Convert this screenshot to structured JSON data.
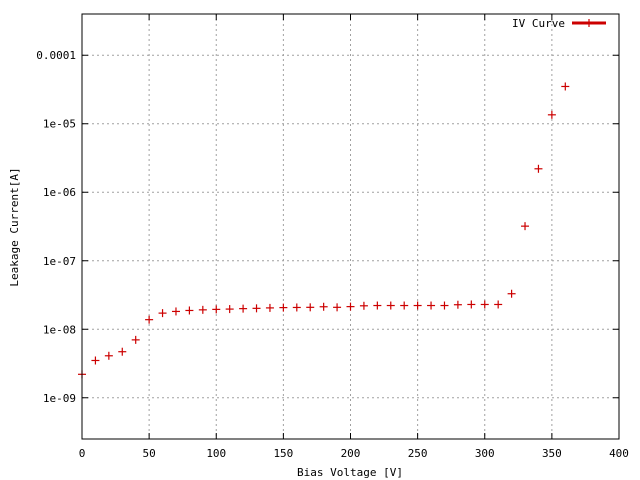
{
  "chart_data": {
    "type": "scatter",
    "title": "",
    "xlabel": "Bias Voltage [V]",
    "ylabel": "Leakage Current[A]",
    "xlim": [
      0,
      400
    ],
    "ylim": [
      2.5e-10,
      0.0004
    ],
    "yscale": "log",
    "grid": true,
    "legend_position": "top-right",
    "xticks": [
      {
        "v": 0,
        "label": "0"
      },
      {
        "v": 50,
        "label": "50"
      },
      {
        "v": 100,
        "label": "100"
      },
      {
        "v": 150,
        "label": "150"
      },
      {
        "v": 200,
        "label": "200"
      },
      {
        "v": 250,
        "label": "250"
      },
      {
        "v": 300,
        "label": "300"
      },
      {
        "v": 350,
        "label": "350"
      },
      {
        "v": 400,
        "label": "400"
      }
    ],
    "yticks": [
      {
        "v": 1e-09,
        "label": "1e-09"
      },
      {
        "v": 1e-08,
        "label": "1e-08"
      },
      {
        "v": 1e-07,
        "label": "1e-07"
      },
      {
        "v": 1e-06,
        "label": "1e-06"
      },
      {
        "v": 1e-05,
        "label": "1e-05"
      },
      {
        "v": 0.0001,
        "label": "0.0001"
      }
    ],
    "series": [
      {
        "name": "IV Curve",
        "color": "#cc0000",
        "x": [
          0,
          10,
          20,
          30,
          40,
          50,
          60,
          70,
          80,
          90,
          100,
          110,
          120,
          130,
          140,
          150,
          160,
          170,
          180,
          190,
          200,
          210,
          220,
          230,
          240,
          250,
          260,
          270,
          280,
          290,
          300,
          310,
          320,
          330,
          340,
          350,
          360
        ],
        "y": [
          2.2e-09,
          3.5e-09,
          4.1e-09,
          4.7e-09,
          7e-09,
          1.38e-08,
          1.72e-08,
          1.82e-08,
          1.88e-08,
          1.92e-08,
          1.95e-08,
          1.97e-08,
          2e-08,
          2.02e-08,
          2.05e-08,
          2.07e-08,
          2.08e-08,
          2.09e-08,
          2.13e-08,
          2.09e-08,
          2.14e-08,
          2.2e-08,
          2.22e-08,
          2.22e-08,
          2.22e-08,
          2.22e-08,
          2.22e-08,
          2.22e-08,
          2.28e-08,
          2.3e-08,
          2.3e-08,
          2.3e-08,
          3.3e-08,
          3.2e-07,
          2.2e-06,
          1.35e-05,
          3.5e-05
        ]
      }
    ]
  }
}
